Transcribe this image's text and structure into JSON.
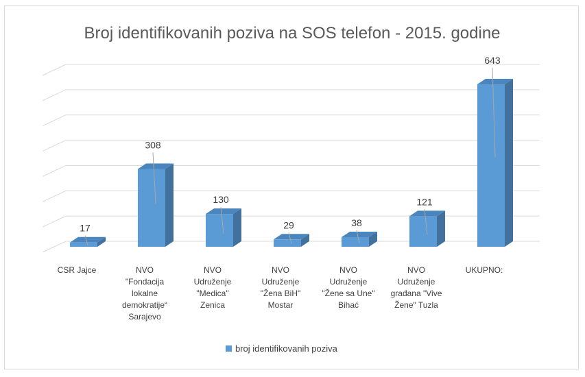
{
  "chart_data": {
    "type": "bar",
    "title": "Broj identifikovanih poziva na SOS telefon - 2015. godine",
    "categories": [
      [
        "CSR Jajce"
      ],
      [
        "NVO",
        "\"Fondacija",
        "lokalne",
        "demokratije“",
        "Sarajevo"
      ],
      [
        "NVO",
        "Udruženje",
        "\"Medica\"",
        "Zenica"
      ],
      [
        "NVO",
        "Udruženje",
        "\"Žena BiH\"",
        "Mostar"
      ],
      [
        "NVO",
        "Udruženje",
        "\"Žene sa Une\"",
        "Bihać"
      ],
      [
        "NVO",
        "Udruženje",
        "građana \"Vive",
        "Žene\" Tuzla"
      ],
      [
        "UKUPNO:"
      ]
    ],
    "series": [
      {
        "name": "broj identifikovanih poziva",
        "values": [
          17,
          308,
          130,
          29,
          38,
          121,
          643
        ],
        "color": "#5b9bd5"
      }
    ],
    "ylim": [
      0,
      700
    ],
    "grid": true,
    "legend_position": "bottom"
  }
}
